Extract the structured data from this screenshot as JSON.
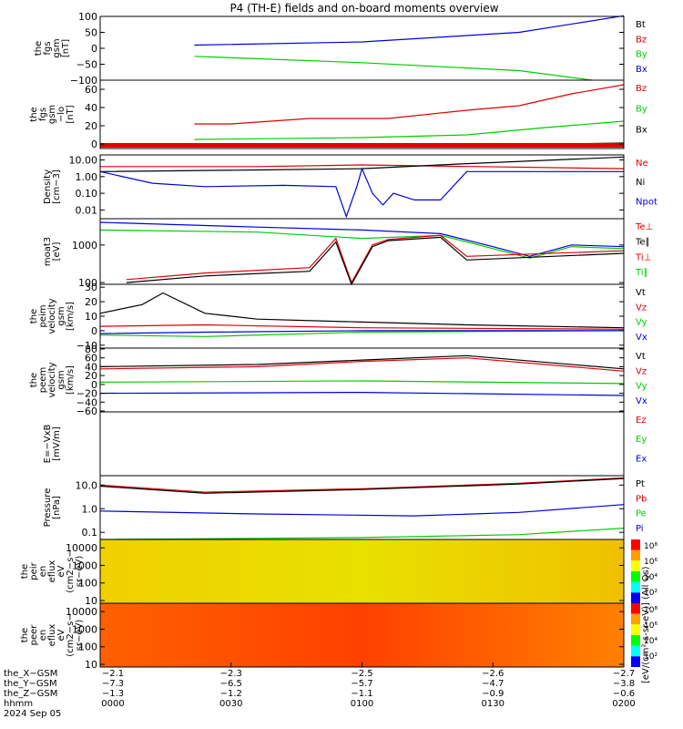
{
  "title": "P4 (TH-E) fields and on-board moments overview",
  "date_label": "2024 Sep 05",
  "spec_unit_label": "[eV/(cm²-s-sr-eV)] (All Qs)",
  "colors": {
    "black": "#000000",
    "red": "#e00000",
    "green": "#00cc00",
    "blue": "#0000e0"
  },
  "chart_data": [
    {
      "type": "line",
      "ylabel": [
        "the",
        "fgs",
        "gsm",
        "[nT]"
      ],
      "ylim": [
        -100,
        100
      ],
      "ticks": [
        {
          "v": 100,
          "t": "100"
        },
        {
          "v": 50,
          "t": "50"
        },
        {
          "v": 0,
          "t": "0"
        },
        {
          "v": -50,
          "t": "−50"
        },
        {
          "v": -100,
          "t": "−100"
        }
      ],
      "legend": [
        {
          "text": "Bt",
          "color": "black"
        },
        {
          "text": "Bz",
          "color": "red"
        },
        {
          "text": "By",
          "color": "green"
        },
        {
          "text": "Bx",
          "color": "blue"
        }
      ],
      "series": [
        {
          "color": "blue",
          "x": [
            0.18,
            0.5,
            0.8,
            1.0
          ],
          "y": [
            10,
            20,
            50,
            102
          ]
        },
        {
          "color": "green",
          "x": [
            0.18,
            0.5,
            0.8,
            0.94
          ],
          "y": [
            -25,
            -45,
            -70,
            -100
          ]
        }
      ]
    },
    {
      "type": "line",
      "ylabel": [
        "the",
        "fgs",
        "gsm",
        "−lo",
        "[nT]"
      ],
      "ylim": [
        -5,
        70
      ],
      "ticks": [
        {
          "v": 60,
          "t": "60"
        },
        {
          "v": 40,
          "t": "40"
        },
        {
          "v": 20,
          "t": "20"
        },
        {
          "v": 0,
          "t": "0"
        }
      ],
      "legend": [
        {
          "text": "Bz",
          "color": "red"
        },
        {
          "text": "By",
          "color": "green"
        },
        {
          "text": "Bx",
          "color": "black"
        }
      ],
      "series": [
        {
          "color": "red",
          "x": [
            0.18,
            0.25,
            0.4,
            0.55,
            0.7,
            0.8,
            0.9,
            1.0
          ],
          "y": [
            22,
            22,
            28,
            28,
            37,
            42,
            55,
            65
          ]
        },
        {
          "color": "green",
          "x": [
            0.18,
            0.5,
            0.7,
            0.85,
            1.0
          ],
          "y": [
            5,
            7,
            10,
            18,
            25
          ]
        },
        {
          "color": "black",
          "x": [
            0.18,
            0.5,
            1.0
          ],
          "y": [
            -2,
            -3,
            1
          ]
        }
      ]
    },
    {
      "type": "line",
      "ylabel": [
        "Density",
        "[cm−3]"
      ],
      "ylog": true,
      "ylim": [
        0.003,
        20
      ],
      "ticks": [
        {
          "v": 10,
          "t": "10.00"
        },
        {
          "v": 1,
          "t": "1.00"
        },
        {
          "v": 0.1,
          "t": "0.10"
        },
        {
          "v": 0.01,
          "t": "0.01"
        }
      ],
      "legend": [
        {
          "text": "Ne",
          "color": "red"
        },
        {
          "text": "Ni",
          "color": "black"
        },
        {
          "text": "Npot",
          "color": "blue"
        }
      ],
      "series": [
        {
          "color": "red",
          "x": [
            0,
            0.3,
            0.5,
            1.0
          ],
          "y": [
            4,
            4,
            5,
            3
          ]
        },
        {
          "color": "black",
          "x": [
            0,
            0.3,
            0.5,
            0.7,
            1.0
          ],
          "y": [
            2,
            2.5,
            3,
            6,
            15
          ]
        },
        {
          "color": "blue",
          "x": [
            0,
            0.1,
            0.2,
            0.35,
            0.45,
            0.47,
            0.49,
            0.5,
            0.52,
            0.54,
            0.56,
            0.6,
            0.65,
            0.7,
            1.0
          ],
          "y": [
            2,
            0.4,
            0.25,
            0.3,
            0.25,
            0.004,
            0.25,
            3,
            0.1,
            0.02,
            0.1,
            0.04,
            0.04,
            2,
            2
          ]
        }
      ]
    },
    {
      "type": "line",
      "ylabel": [
        "moat3",
        "[eV]"
      ],
      "ylog": true,
      "ylim": [
        90,
        5000
      ],
      "ticks": [
        {
          "v": 1000,
          "t": "1000"
        },
        {
          "v": 100,
          "t": "100"
        }
      ],
      "legend": [
        {
          "text": "Te⊥",
          "color": "red"
        },
        {
          "text": "Te∥",
          "color": "black"
        },
        {
          "text": "Ti⊥",
          "color": "red"
        },
        {
          "text": "Ti∥",
          "color": "green"
        }
      ],
      "series": [
        {
          "color": "blue",
          "x": [
            0,
            0.3,
            0.5,
            0.65,
            0.75,
            0.82,
            0.9,
            1.0
          ],
          "y": [
            4000,
            3000,
            2500,
            2000,
            900,
            500,
            1000,
            900
          ]
        },
        {
          "color": "green",
          "x": [
            0,
            0.3,
            0.5,
            0.65,
            0.75,
            0.82,
            0.9,
            1.0
          ],
          "y": [
            2500,
            2200,
            1500,
            1800,
            800,
            450,
            900,
            800
          ]
        },
        {
          "color": "red",
          "x": [
            0.05,
            0.2,
            0.4,
            0.45,
            0.48,
            0.52,
            0.55,
            0.65,
            0.7,
            1.0
          ],
          "y": [
            120,
            180,
            250,
            1500,
            100,
            1000,
            1400,
            1800,
            500,
            700
          ]
        },
        {
          "color": "black",
          "x": [
            0.05,
            0.2,
            0.4,
            0.45,
            0.48,
            0.52,
            0.55,
            0.65,
            0.7,
            1.0
          ],
          "y": [
            100,
            150,
            200,
            1200,
            90,
            900,
            1300,
            1600,
            400,
            600
          ]
        }
      ]
    },
    {
      "type": "line",
      "ylabel": [
        "the",
        "peim",
        "velocity",
        "gsm",
        "[km/s]"
      ],
      "ylim": [
        -12,
        32
      ],
      "ticks": [
        {
          "v": 30,
          "t": "30"
        },
        {
          "v": 20,
          "t": "20"
        },
        {
          "v": 10,
          "t": "10"
        },
        {
          "v": 0,
          "t": "0"
        },
        {
          "v": -10,
          "t": "−10"
        }
      ],
      "legend": [
        {
          "text": "Vt",
          "color": "black"
        },
        {
          "text": "Vz",
          "color": "red"
        },
        {
          "text": "Vy",
          "color": "green"
        },
        {
          "text": "Vx",
          "color": "blue"
        }
      ],
      "series": [
        {
          "color": "black",
          "x": [
            0,
            0.08,
            0.12,
            0.2,
            0.3,
            0.5,
            0.7,
            1.0
          ],
          "y": [
            12,
            18,
            26,
            12,
            8,
            6,
            4,
            2
          ]
        },
        {
          "color": "red",
          "x": [
            0,
            0.2,
            0.5,
            1.0
          ],
          "y": [
            3,
            4,
            2,
            1
          ]
        },
        {
          "color": "green",
          "x": [
            0,
            0.2,
            0.5,
            1.0
          ],
          "y": [
            -3,
            -4,
            -1,
            0
          ]
        },
        {
          "color": "blue",
          "x": [
            0,
            0.2,
            0.5,
            1.0
          ],
          "y": [
            -2,
            -1,
            0,
            0
          ]
        }
      ]
    },
    {
      "type": "line",
      "ylabel": [
        "the",
        "peem",
        "velocity",
        "gsm",
        "[km/s]"
      ],
      "ylim": [
        -62,
        82
      ],
      "ticks": [
        {
          "v": 80,
          "t": "80"
        },
        {
          "v": 60,
          "t": "60"
        },
        {
          "v": 40,
          "t": "40"
        },
        {
          "v": 20,
          "t": "20"
        },
        {
          "v": 0,
          "t": "0"
        },
        {
          "v": -20,
          "t": "−20"
        },
        {
          "v": -40,
          "t": "−40"
        },
        {
          "v": -60,
          "t": "−60"
        }
      ],
      "legend": [
        {
          "text": "Vt",
          "color": "black"
        },
        {
          "text": "Vz",
          "color": "red"
        },
        {
          "text": "Vy",
          "color": "green"
        },
        {
          "text": "Vx",
          "color": "blue"
        }
      ],
      "series": [
        {
          "color": "black",
          "x": [
            0,
            0.3,
            0.5,
            0.7,
            1.0
          ],
          "y": [
            40,
            45,
            55,
            65,
            35
          ]
        },
        {
          "color": "red",
          "x": [
            0,
            0.3,
            0.5,
            0.7,
            1.0
          ],
          "y": [
            35,
            40,
            52,
            60,
            30
          ]
        },
        {
          "color": "green",
          "x": [
            0,
            0.5,
            1.0
          ],
          "y": [
            5,
            8,
            2
          ]
        },
        {
          "color": "blue",
          "x": [
            0,
            0.5,
            1.0
          ],
          "y": [
            -20,
            -18,
            -25
          ]
        }
      ]
    },
    {
      "type": "line",
      "ylabel": [
        "E=−VxB",
        "[mV/m]"
      ],
      "ylim": [
        0,
        1
      ],
      "ticks": [],
      "legend": [
        {
          "text": "Ez",
          "color": "red"
        },
        {
          "text": "Ey",
          "color": "green"
        },
        {
          "text": "Ex",
          "color": "blue"
        }
      ],
      "series": []
    },
    {
      "type": "line",
      "ylabel": [
        "Pressure",
        "[nPa]"
      ],
      "ylog": true,
      "ylim": [
        0.05,
        25
      ],
      "ticks": [
        {
          "v": 10,
          "t": "10.0"
        },
        {
          "v": 1,
          "t": "1.0"
        },
        {
          "v": 0.1,
          "t": "0.1"
        }
      ],
      "legend": [
        {
          "text": "Pt",
          "color": "black"
        },
        {
          "text": "Pb",
          "color": "red"
        },
        {
          "text": "Pe",
          "color": "green"
        },
        {
          "text": "Pi",
          "color": "blue"
        }
      ],
      "series": [
        {
          "color": "red",
          "x": [
            0,
            0.2,
            0.5,
            0.8,
            1.0
          ],
          "y": [
            10,
            5,
            7,
            12,
            20
          ]
        },
        {
          "color": "black",
          "x": [
            0,
            0.2,
            0.5,
            0.8,
            1.0
          ],
          "y": [
            9,
            4.5,
            6.5,
            11,
            19
          ]
        },
        {
          "color": "blue",
          "x": [
            0,
            0.3,
            0.6,
            0.8,
            1.0
          ],
          "y": [
            0.8,
            0.6,
            0.5,
            0.7,
            1.5
          ]
        },
        {
          "color": "green",
          "x": [
            0,
            0.5,
            0.8,
            1.0
          ],
          "y": [
            0.05,
            0.06,
            0.08,
            0.15
          ]
        }
      ]
    },
    {
      "type": "heatmap",
      "ylabel": [
        "the",
        "peir",
        "en",
        "eflux",
        "eV",
        "(cm2−s−",
        "sr−eV)"
      ],
      "ylog": true,
      "ylim": [
        7,
        30000
      ],
      "ticks": [
        {
          "v": 10000,
          "t": "10000"
        },
        {
          "v": 1000,
          "t": "1000"
        },
        {
          "v": 100,
          "t": "100"
        },
        {
          "v": 10,
          "t": "10"
        }
      ],
      "colorbar": [
        "10⁸",
        "10⁶",
        "10⁴",
        "10²"
      ]
    },
    {
      "type": "heatmap",
      "ylabel": [
        "the",
        "peer",
        "en",
        "eflux",
        "eV",
        "(cm2−s−",
        "sr−eV)"
      ],
      "ylog": true,
      "ylim": [
        7,
        30000
      ],
      "ticks": [
        {
          "v": 10000,
          "t": "10000"
        },
        {
          "v": 1000,
          "t": "1000"
        },
        {
          "v": 100,
          "t": "100"
        },
        {
          "v": 10,
          "t": "10"
        }
      ],
      "colorbar": [
        "10⁸",
        "10⁶",
        "10⁴",
        "10²"
      ]
    }
  ],
  "x_axis": {
    "row_labels": [
      "the_X−GSM",
      "the_Y−GSM",
      "the_Z−GSM",
      "hhmm",
      "2024 Sep 05"
    ],
    "columns": [
      {
        "x": 0,
        "vals": [
          "−2.1",
          "−7.3",
          "−1.3",
          "0000"
        ]
      },
      {
        "x": 0.25,
        "vals": [
          "−2.3",
          "−6.5",
          "−1.2",
          "0030"
        ]
      },
      {
        "x": 0.5,
        "vals": [
          "−2.5",
          "−5.7",
          "−1.1",
          "0100"
        ]
      },
      {
        "x": 0.75,
        "vals": [
          "−2.6",
          "−4.7",
          "−0.9",
          "0130"
        ]
      },
      {
        "x": 1,
        "vals": [
          "−2.7",
          "−3.8",
          "−0.6",
          "0200"
        ]
      }
    ]
  }
}
